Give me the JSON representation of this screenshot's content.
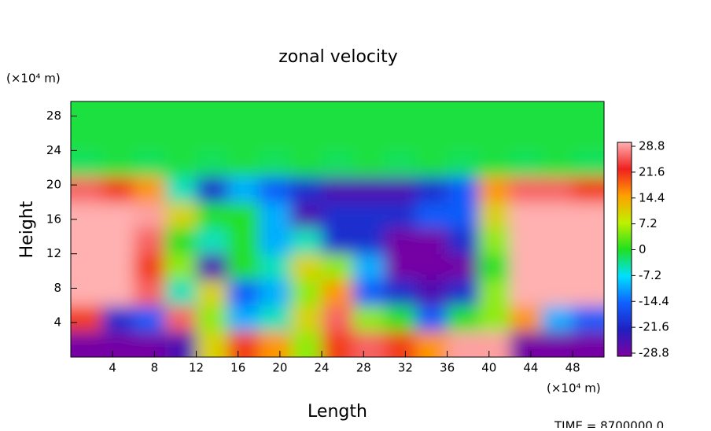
{
  "chart_data": {
    "type": "contour",
    "title": "zonal velocity",
    "xlabel": "Length",
    "ylabel": "Height",
    "xunit": "(×10⁴ m)",
    "yunit": "(×10⁴ m)",
    "footer": "TIME = 8700000.0",
    "xlim": [
      0,
      51
    ],
    "ylim": [
      0,
      29.7
    ],
    "xticks": [
      4,
      8,
      12,
      16,
      20,
      24,
      28,
      32,
      36,
      40,
      44,
      48
    ],
    "yticks": [
      4,
      8,
      12,
      16,
      20,
      24,
      28
    ],
    "x": [
      1.5,
      4.5,
      7.5,
      10.5,
      13.5,
      16.5,
      19.5,
      22.5,
      25.5,
      28.5,
      31.5,
      34.5,
      37.5,
      40.5,
      43.5,
      46.5,
      49.5
    ],
    "y": [
      1.5,
      4.5,
      7.5,
      10.5,
      13.5,
      16.5,
      19.5,
      22.5,
      25.5,
      28.5
    ],
    "z": [
      [
        -28,
        -28,
        -28,
        -25,
        10,
        20,
        15,
        5,
        20,
        25,
        20,
        15,
        28,
        28,
        -28,
        -28,
        -28
      ],
      [
        20,
        -20,
        -15,
        25,
        5,
        -10,
        -5,
        10,
        25,
        5,
        0,
        -15,
        0,
        5,
        15,
        -10,
        -15
      ],
      [
        29,
        29,
        25,
        -5,
        10,
        -15,
        -10,
        5,
        15,
        -15,
        -20,
        -25,
        -20,
        5,
        29,
        29,
        29
      ],
      [
        29,
        29,
        20,
        5,
        -25,
        0,
        -5,
        10,
        5,
        -10,
        -28,
        -28,
        -28,
        0,
        29,
        29,
        29
      ],
      [
        29,
        29,
        25,
        0,
        -5,
        0,
        -10,
        -5,
        -20,
        -20,
        -28,
        -28,
        -20,
        5,
        29,
        29,
        29
      ],
      [
        29,
        29,
        28,
        10,
        0,
        0,
        -10,
        -25,
        -20,
        -20,
        -20,
        -15,
        -15,
        10,
        29,
        29,
        29
      ],
      [
        25,
        20,
        15,
        -5,
        -20,
        -10,
        -15,
        -20,
        -25,
        -25,
        -25,
        -20,
        -15,
        15,
        25,
        25,
        20
      ],
      [
        -2,
        -1,
        -2,
        -1,
        -2,
        -1,
        -2,
        -1,
        -2,
        -1,
        -2,
        -1,
        -2,
        -1,
        -2,
        -1,
        -2
      ],
      [
        -1,
        -1,
        -1,
        -1,
        -1,
        -1,
        -1,
        -1,
        -1,
        -1,
        -1,
        -1,
        -1,
        -1,
        -1,
        -1,
        -1
      ],
      [
        -1,
        -1,
        -1,
        -1,
        -1,
        -1,
        -1,
        -1,
        -1,
        -1,
        -1,
        -1,
        -1,
        -1,
        -1,
        -1,
        -1
      ]
    ],
    "zlim": [
      -28.8,
      28.8
    ],
    "zticks": [
      28.8,
      21.6,
      14.4,
      7.2,
      0,
      -7.2,
      -14.4,
      -21.6,
      -28.8
    ],
    "colors": [
      "#8000a0",
      "#2020c0",
      "#1060ff",
      "#00e0ff",
      "#20e020",
      "#c0f000",
      "#ffa000",
      "#f02020",
      "#ffb0b0"
    ]
  }
}
